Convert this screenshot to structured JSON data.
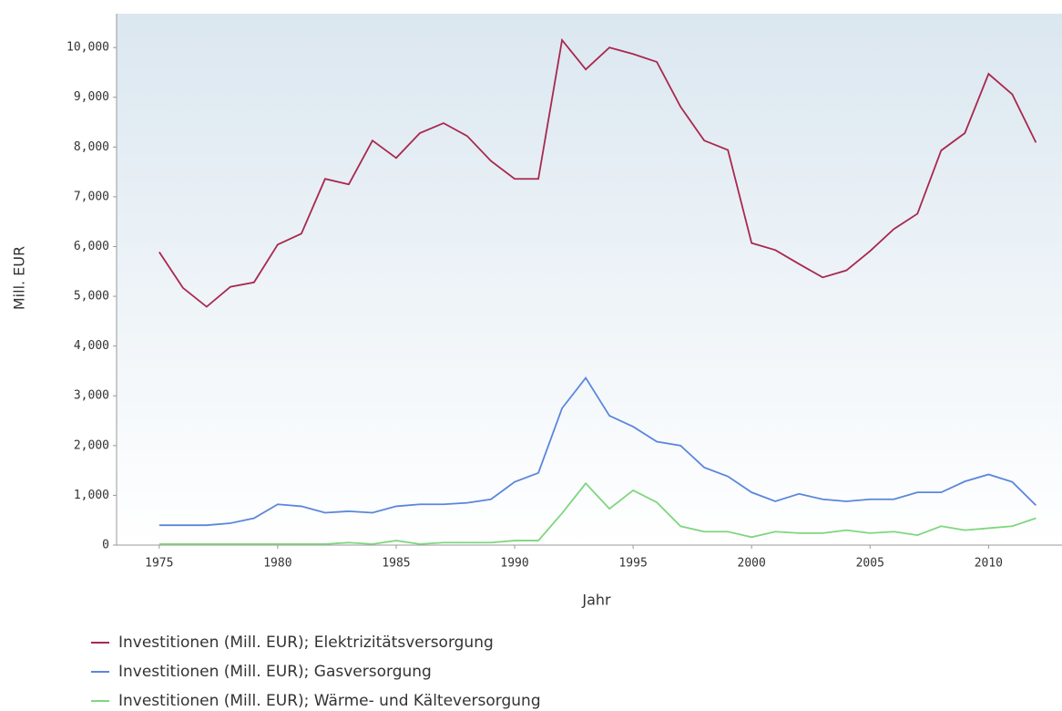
{
  "chart_data": {
    "type": "line",
    "x_label": "Jahr",
    "y_label": "Mill. EUR",
    "x": [
      1975,
      1976,
      1977,
      1978,
      1979,
      1980,
      1981,
      1982,
      1983,
      1984,
      1985,
      1986,
      1987,
      1988,
      1989,
      1990,
      1991,
      1992,
      1993,
      1994,
      1995,
      1996,
      1997,
      1998,
      1999,
      2000,
      2001,
      2002,
      2003,
      2004,
      2005,
      2006,
      2007,
      2008,
      2009,
      2010,
      2011,
      2012
    ],
    "series": [
      {
        "name": "Investitionen (Mill. EUR); Elektrizitätsversorgung",
        "color": "#a8284e",
        "values": [
          5890,
          5170,
          4790,
          5190,
          5280,
          6040,
          6260,
          7360,
          7250,
          8130,
          7780,
          8280,
          8480,
          8220,
          7720,
          7360,
          7360,
          10150,
          9560,
          10000,
          9870,
          9710,
          8810,
          8130,
          7940,
          6070,
          5930,
          5650,
          5380,
          5520,
          5910,
          6350,
          6660,
          7930,
          8280,
          9470,
          9060,
          8090
        ]
      },
      {
        "name": "Investitionen (Mill. EUR); Gasversorgung",
        "color": "#5b86dc",
        "values": [
          400,
          400,
          400,
          440,
          540,
          820,
          780,
          650,
          680,
          650,
          780,
          820,
          820,
          850,
          920,
          1270,
          1450,
          2750,
          3360,
          2600,
          2380,
          2080,
          2000,
          1560,
          1380,
          1060,
          880,
          1030,
          920,
          880,
          920,
          920,
          1060,
          1060,
          1280,
          1420,
          1270,
          800
        ]
      },
      {
        "name": "Investitionen (Mill. EUR); Wärme- und Kälteversorgung",
        "color": "#7fd67f",
        "values": [
          20,
          20,
          20,
          20,
          20,
          20,
          20,
          20,
          50,
          20,
          90,
          20,
          50,
          50,
          50,
          90,
          90,
          640,
          1240,
          730,
          1100,
          860,
          380,
          270,
          270,
          160,
          270,
          240,
          240,
          300,
          240,
          270,
          200,
          380,
          300,
          340,
          380,
          540
        ]
      }
    ],
    "xlim": [
      1973.2,
      2013.1
    ],
    "xticks": [
      1975,
      1980,
      1985,
      1990,
      1995,
      2000,
      2005,
      2010
    ],
    "ylim": [
      0,
      10680
    ],
    "yticks": [
      0,
      {
        "value": 1000,
        "label": "1,000"
      },
      {
        "value": 2000,
        "label": "2,000"
      },
      {
        "value": 3000,
        "label": "3,000"
      },
      {
        "value": 4000,
        "label": "4,000"
      },
      {
        "value": 5000,
        "label": "5,000"
      },
      {
        "value": 6000,
        "label": "6,000"
      },
      {
        "value": 7000,
        "label": "7,000"
      },
      {
        "value": 8000,
        "label": "8,000"
      },
      {
        "value": 9000,
        "label": "9,000"
      },
      {
        "value": 10000,
        "label": "10,000"
      }
    ],
    "grid": false,
    "legend": "bottom"
  }
}
